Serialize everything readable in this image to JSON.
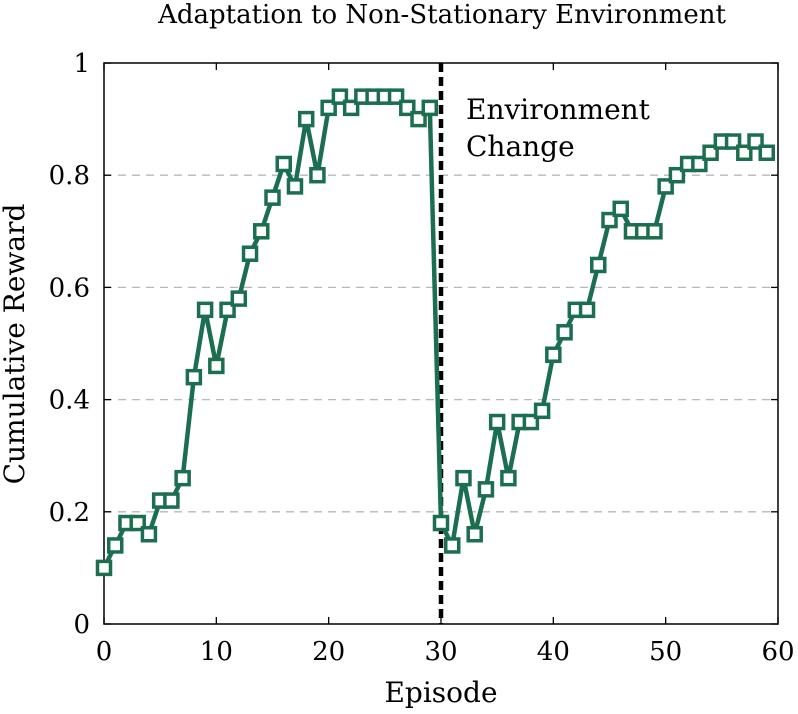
{
  "chart_data": {
    "type": "line",
    "title": "Adaptation to Non-Stationary Environment",
    "xlabel": "Episode",
    "ylabel": "Cumulative Reward",
    "xlim": [
      0,
      60
    ],
    "ylim": [
      0,
      1
    ],
    "xticks": [
      0,
      10,
      20,
      30,
      40,
      50,
      60
    ],
    "yticks": [
      0,
      0.2,
      0.4,
      0.6,
      0.8,
      1
    ],
    "ytick_labels": [
      "0",
      "0.2",
      "0.4",
      "0.6",
      "0.8",
      "1"
    ],
    "grid": "horizontal-dashed",
    "series": [
      {
        "marker": "square",
        "color": "#1b6e50",
        "x": [
          0,
          1,
          2,
          3,
          4,
          5,
          6,
          7,
          8,
          9,
          10,
          11,
          12,
          13,
          14,
          15,
          16,
          17,
          18,
          19,
          20,
          21,
          22,
          23,
          24,
          25,
          26,
          27,
          28,
          29,
          30,
          31,
          32,
          33,
          34,
          35,
          36,
          37,
          38,
          39,
          40,
          41,
          42,
          43,
          44,
          45,
          46,
          47,
          48,
          49,
          50,
          51,
          52,
          53,
          54,
          55,
          56,
          57,
          58,
          59
        ],
        "y": [
          0.1,
          0.14,
          0.18,
          0.18,
          0.16,
          0.22,
          0.22,
          0.26,
          0.44,
          0.56,
          0.46,
          0.56,
          0.58,
          0.66,
          0.7,
          0.76,
          0.82,
          0.78,
          0.9,
          0.8,
          0.92,
          0.94,
          0.92,
          0.94,
          0.94,
          0.94,
          0.94,
          0.92,
          0.9,
          0.92,
          0.18,
          0.14,
          0.26,
          0.16,
          0.24,
          0.36,
          0.26,
          0.36,
          0.36,
          0.38,
          0.48,
          0.52,
          0.56,
          0.56,
          0.64,
          0.72,
          0.74,
          0.7,
          0.7,
          0.7,
          0.78,
          0.8,
          0.82,
          0.82,
          0.84,
          0.86,
          0.86,
          0.84,
          0.86,
          0.84
        ]
      }
    ],
    "annotations": [
      {
        "type": "vline",
        "x": 30,
        "style": "dashed",
        "color": "#000000"
      },
      {
        "type": "text",
        "lines": [
          "Environment",
          "Change"
        ]
      }
    ]
  }
}
